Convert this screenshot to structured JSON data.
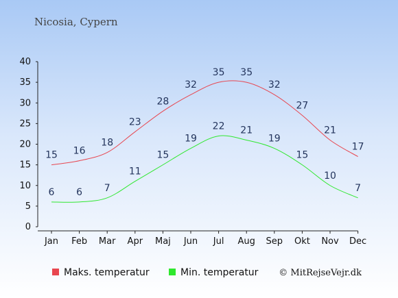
{
  "chart_data": {
    "type": "line",
    "title": "Nicosia, Cypern",
    "categories": [
      "Jan",
      "Feb",
      "Mar",
      "Apr",
      "Maj",
      "Jun",
      "Jul",
      "Aug",
      "Sep",
      "Okt",
      "Nov",
      "Dec"
    ],
    "ylim": [
      0,
      40
    ],
    "yticks": [
      "0",
      "5",
      "10",
      "15",
      "20",
      "25",
      "30",
      "35",
      "40"
    ],
    "grid": false,
    "legend_position": "bottom",
    "series": [
      {
        "name": "Maks. temperatur",
        "color": "#e8464f",
        "values": [
          15,
          16,
          18,
          23,
          28,
          32,
          35,
          35,
          32,
          27,
          21,
          17
        ]
      },
      {
        "name": "Min. temperatur",
        "color": "#2ee82e",
        "values": [
          6,
          6,
          7,
          11,
          15,
          19,
          22,
          21,
          19,
          15,
          10,
          7
        ]
      }
    ],
    "credit": "© MitRejseVejr.dk"
  }
}
